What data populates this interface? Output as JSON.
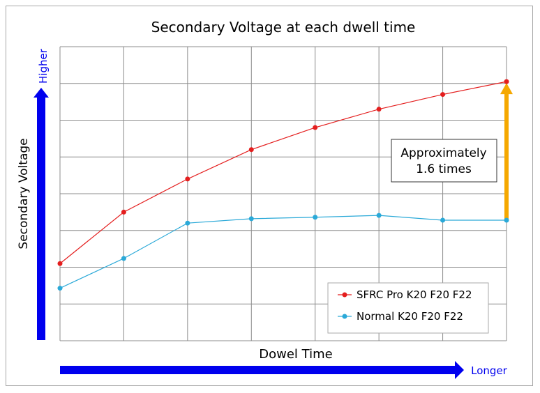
{
  "chart_data": {
    "type": "line",
    "title": "Secondary Voltage at each dwell time",
    "xlabel": "Dowel Time",
    "ylabel": "Secondary Voltage",
    "y_axis_direction_label": "Higher",
    "x_axis_direction_label": "Longer",
    "x": [
      1,
      2,
      3,
      4,
      5,
      6,
      7,
      8
    ],
    "xlim": [
      1,
      8
    ],
    "ylim": [
      0,
      8
    ],
    "grid": true,
    "tick_labels_shown": false,
    "series": [
      {
        "name": "SFRC Pro K20 F20 F22",
        "color": "#e41e1e",
        "values": [
          2.1,
          3.5,
          4.4,
          5.2,
          5.8,
          6.3,
          6.7,
          7.05
        ]
      },
      {
        "name": "Normal K20 F20 F22",
        "color": "#2aa9d8",
        "values": [
          1.43,
          2.24,
          3.2,
          3.32,
          3.36,
          3.41,
          3.28,
          3.28
        ]
      }
    ],
    "annotation": {
      "text_line1": "Approximately",
      "text_line2": "1.6 times",
      "arrow_color": "#f5a800"
    },
    "legend_position": "bottom-right",
    "axis_arrow_color": "#0000ee"
  }
}
